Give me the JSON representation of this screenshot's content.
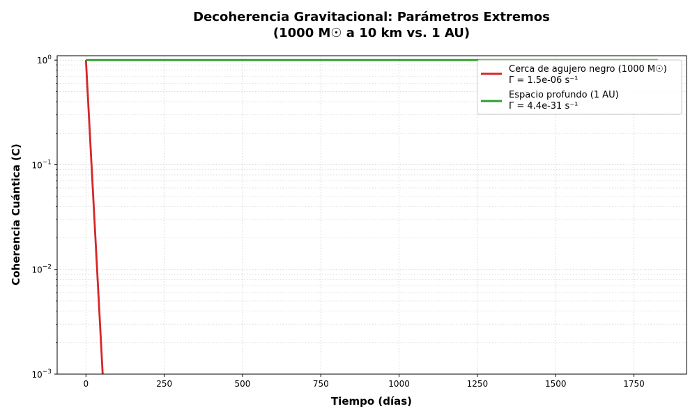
{
  "chart_data": {
    "type": "line",
    "title_line1": "Decoherencia Gravitacional: Parámetros Extremos",
    "title_line2": "(1000 M☉ a 10 km vs. 1 AU)",
    "xlabel": "Tiempo (días)",
    "ylabel": "Coherencia Cuántica (C)",
    "xlim": [
      -92,
      1918
    ],
    "ylim": [
      0.001,
      1.1
    ],
    "yscale": "log",
    "grid": true,
    "legend_position": "top-right",
    "x_ticks": [
      0,
      250,
      500,
      750,
      1000,
      1250,
      1500,
      1750
    ],
    "x_tick_labels": [
      "0",
      "250",
      "500",
      "750",
      "1000",
      "1250",
      "1500",
      "1750"
    ],
    "y_ticks": [
      1,
      0.1,
      0.01,
      0.001
    ],
    "y_tick_mantissas": [
      "10",
      "10",
      "10",
      "10"
    ],
    "y_tick_exponents": [
      "0",
      "−1",
      "−2",
      "−3"
    ],
    "series": [
      {
        "name": "Cerca de agujero negro (1000 M☉)",
        "rate_label": "Γ = 1.5e-06 s⁻¹",
        "color": "#d62728",
        "x": [
          0,
          10,
          20,
          30,
          40,
          50,
          53.3
        ],
        "y": [
          1.0,
          0.274,
          0.0751,
          0.0206,
          0.00564,
          0.00155,
          0.001
        ]
      },
      {
        "name": "Espacio profundo (1 AU)",
        "rate_label": "Γ = 4.4e-31 s⁻¹",
        "color": "#2ca02c",
        "x": [
          0,
          1826
        ],
        "y": [
          1.0,
          1.0
        ]
      }
    ]
  }
}
